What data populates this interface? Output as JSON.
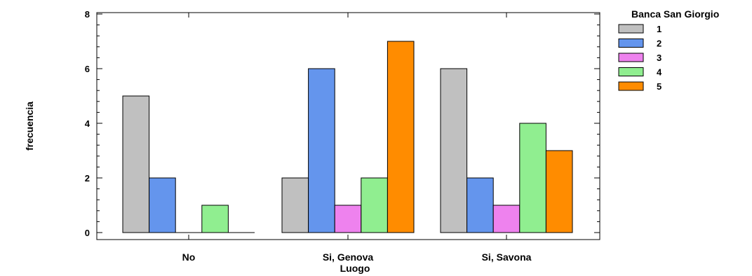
{
  "chart_data": {
    "type": "bar",
    "xlabel": "Luogo",
    "ylabel": "frecuencia",
    "ylim": [
      0,
      8
    ],
    "yticks": [
      0,
      2,
      4,
      6,
      8
    ],
    "grid": false,
    "legend_position": "top-right",
    "legend_title": "Banca San Giorgio",
    "categories": [
      "No",
      "Si, Genova",
      "Si, Savona"
    ],
    "series": [
      {
        "name": "1",
        "color": "#c0c0c0",
        "values": [
          5,
          2,
          6
        ]
      },
      {
        "name": "2",
        "color": "#6495ed",
        "values": [
          2,
          6,
          2
        ]
      },
      {
        "name": "3",
        "color": "#ee82ee",
        "values": [
          0,
          1,
          1
        ]
      },
      {
        "name": "4",
        "color": "#90ee90",
        "values": [
          1,
          2,
          4
        ]
      },
      {
        "name": "5",
        "color": "#ff8c00",
        "values": [
          0,
          7,
          3
        ]
      }
    ]
  }
}
